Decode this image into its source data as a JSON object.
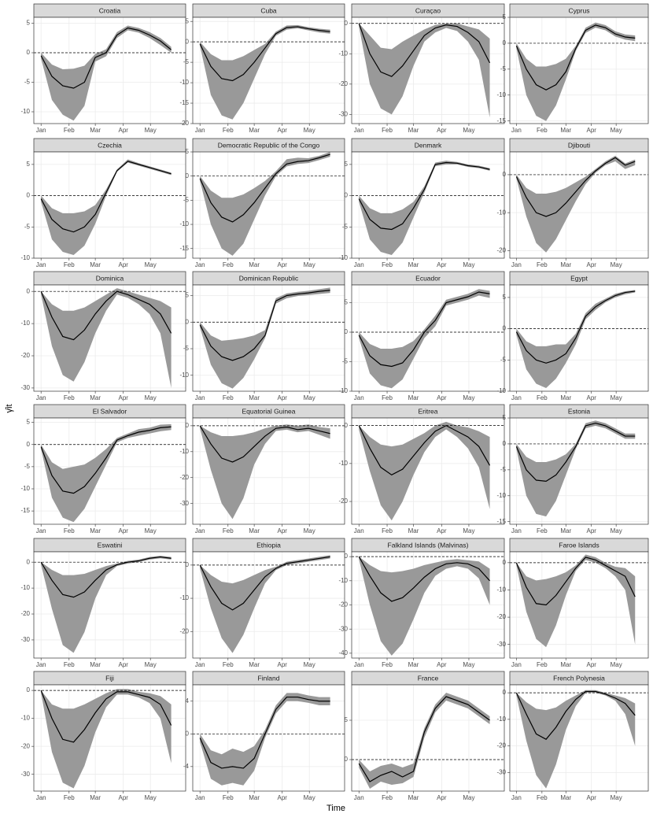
{
  "x_axis": {
    "label": "Time",
    "x": [
      0,
      12,
      24,
      36,
      48,
      60,
      72,
      84,
      96,
      108,
      120,
      132,
      144
    ],
    "xlim": [
      -8,
      160
    ],
    "xticks": [
      {
        "value": 0,
        "label": "Jan"
      },
      {
        "value": 31,
        "label": "Feb"
      },
      {
        "value": 60,
        "label": "Mar"
      },
      {
        "value": 91,
        "label": "Apr"
      },
      {
        "value": 121,
        "label": "May"
      }
    ]
  },
  "y_axis": {
    "label": "γ̂it"
  },
  "chart_data": [
    {
      "type": "line",
      "title": "Croatia",
      "ylim": [
        -12,
        6
      ],
      "yticks": [
        -10,
        -5,
        0,
        5
      ],
      "hline": 0,
      "values": [
        -0.5,
        -4,
        -5.6,
        -6,
        -5,
        -0.8,
        0,
        3,
        4.2,
        3.8,
        3,
        2,
        0.5
      ],
      "lower": [
        -1,
        -8,
        -10.5,
        -11.5,
        -9,
        -1.5,
        -0.6,
        2.5,
        3.8,
        3.4,
        2.5,
        1.3,
        0
      ],
      "upper": [
        0,
        -2,
        -2.8,
        -2.7,
        -2.2,
        -0.2,
        0.6,
        3.5,
        4.6,
        4.2,
        3.5,
        2.5,
        1
      ]
    },
    {
      "type": "line",
      "title": "Cuba",
      "ylim": [
        -20,
        6
      ],
      "yticks": [
        -20,
        -15,
        -10,
        -5,
        0,
        5
      ],
      "hline": 0,
      "values": [
        -0.5,
        -6,
        -9,
        -9.5,
        -8,
        -5,
        -1.5,
        2,
        3.5,
        3.7,
        3.2,
        2.8,
        2.5
      ],
      "lower": [
        -1,
        -13,
        -18,
        -19,
        -15,
        -9,
        -3,
        1.5,
        3,
        3.3,
        2.8,
        2.3,
        2
      ],
      "upper": [
        0,
        -3,
        -4.5,
        -4.5,
        -3.5,
        -2,
        -0.5,
        2.5,
        4,
        4.1,
        3.6,
        3.2,
        3
      ]
    },
    {
      "type": "line",
      "title": "Curaçao",
      "ylim": [
        -33,
        2
      ],
      "yticks": [
        -30,
        -20,
        -10,
        0
      ],
      "hline": 0,
      "values": [
        0,
        -10,
        -16,
        -17.5,
        -14,
        -9,
        -4,
        -1.5,
        -0.5,
        -1,
        -3,
        -6,
        -13
      ],
      "lower": [
        -1,
        -20,
        -28,
        -30,
        -24,
        -14,
        -6,
        -3,
        -1.5,
        -2.5,
        -6,
        -12,
        -31
      ],
      "upper": [
        0,
        -4,
        -8,
        -8.5,
        -6,
        -4,
        -2,
        -0.5,
        0,
        0,
        -1,
        -2,
        -5
      ]
    },
    {
      "type": "line",
      "title": "Cyprus",
      "ylim": [
        -15.5,
        5
      ],
      "yticks": [
        -15,
        -10,
        -5,
        0,
        5
      ],
      "hline": 0,
      "values": [
        -0.5,
        -5,
        -8,
        -9,
        -8,
        -5.5,
        -1,
        2.5,
        3.5,
        3,
        1.8,
        1.2,
        1
      ],
      "lower": [
        -1,
        -10,
        -14,
        -15,
        -12,
        -7,
        -1.5,
        2,
        3,
        2.5,
        1.3,
        0.7,
        0.4
      ],
      "upper": [
        0,
        -3,
        -4.5,
        -4.5,
        -4,
        -3,
        -0.5,
        3,
        4,
        3.5,
        2.3,
        1.7,
        1.5
      ]
    },
    {
      "type": "line",
      "title": "Czechia",
      "ylim": [
        -10,
        7
      ],
      "yticks": [
        -10,
        -5,
        0,
        5
      ],
      "hline": 0,
      "values": [
        -0.5,
        -3.8,
        -5.3,
        -5.8,
        -5,
        -3,
        0.5,
        4,
        5.5,
        5,
        4.5,
        4,
        3.5
      ],
      "lower": [
        -1,
        -7,
        -9,
        -9.5,
        -8,
        -4.5,
        0,
        3.8,
        5.3,
        4.8,
        4.3,
        3.8,
        3.3
      ],
      "upper": [
        0,
        -2,
        -2.8,
        -2.8,
        -2.5,
        -1.5,
        1,
        4.2,
        5.8,
        5.2,
        4.7,
        4.2,
        3.7
      ]
    },
    {
      "type": "line",
      "title": "Democratic Republic of the Congo",
      "ylim": [
        -17,
        5
      ],
      "yticks": [
        -15,
        -10,
        -5,
        0,
        5
      ],
      "hline": 0,
      "values": [
        -0.5,
        -5.5,
        -8.5,
        -9.5,
        -8,
        -5.5,
        -2.5,
        0.5,
        2.5,
        3,
        3.2,
        3.8,
        4.5
      ],
      "lower": [
        -1,
        -10,
        -15,
        -16.5,
        -14,
        -9,
        -4,
        0,
        2,
        2.5,
        2.7,
        3.3,
        4
      ],
      "upper": [
        0,
        -3,
        -4.5,
        -4.5,
        -3.8,
        -2.5,
        -1,
        1,
        3.5,
        3.8,
        3.7,
        4.2,
        5
      ]
    },
    {
      "type": "line",
      "title": "Denmark",
      "ylim": [
        -10,
        7
      ],
      "yticks": [
        -10,
        -5,
        0,
        5
      ],
      "hline": 0,
      "values": [
        -0.5,
        -3.8,
        -5.2,
        -5.4,
        -4.5,
        -2,
        1,
        5,
        5.3,
        5.2,
        4.8,
        4.6,
        4.2
      ],
      "lower": [
        -1,
        -7,
        -9,
        -9.5,
        -7.5,
        -3.5,
        0.5,
        4.7,
        5,
        5,
        4.6,
        4.4,
        4
      ],
      "upper": [
        0,
        -2,
        -2.8,
        -2.8,
        -2.2,
        -1,
        1.5,
        5.3,
        5.6,
        5.4,
        5,
        4.8,
        4.4
      ]
    },
    {
      "type": "line",
      "title": "Djibouti",
      "ylim": [
        -22,
        6
      ],
      "yticks": [
        -20,
        -10,
        0
      ],
      "hline": 0,
      "values": [
        -0.5,
        -6,
        -10,
        -11,
        -10,
        -7.5,
        -4.5,
        -1.5,
        1,
        3,
        4.5,
        2.5,
        3.5
      ],
      "lower": [
        -1,
        -11,
        -18,
        -20.5,
        -17,
        -12,
        -7,
        -2.5,
        0.5,
        2.5,
        3.5,
        1.5,
        2.5
      ],
      "upper": [
        0,
        -3.5,
        -5,
        -5,
        -4.5,
        -3.5,
        -2,
        -0.5,
        1.5,
        3.5,
        5,
        3,
        4
      ]
    },
    {
      "type": "line",
      "title": "Dominica",
      "ylim": [
        -31,
        2
      ],
      "yticks": [
        -30,
        -20,
        -10,
        0
      ],
      "hline": 0,
      "values": [
        0,
        -8,
        -14,
        -15,
        -12,
        -7,
        -3,
        0,
        -1,
        -2.5,
        -4,
        -7,
        -13
      ],
      "lower": [
        -1,
        -17,
        -26,
        -28,
        -22,
        -13,
        -6,
        -1,
        -2,
        -4,
        -7,
        -13,
        -30
      ],
      "upper": [
        0,
        -4,
        -6,
        -6,
        -5,
        -3,
        -1,
        1,
        0,
        -1,
        -2,
        -3,
        -5
      ]
    },
    {
      "type": "line",
      "title": "Dominican Republic",
      "ylim": [
        -13,
        7
      ],
      "yticks": [
        -10,
        -5,
        0,
        5
      ],
      "hline": 0,
      "values": [
        -0.5,
        -4.5,
        -6.5,
        -7.2,
        -6.5,
        -5,
        -2.5,
        4,
        5,
        5.3,
        5.5,
        5.8,
        6
      ],
      "lower": [
        -1,
        -8,
        -11.5,
        -12.5,
        -10.5,
        -7,
        -3,
        3.5,
        4.5,
        4.9,
        5.1,
        5.3,
        5.5
      ],
      "upper": [
        0,
        -2.5,
        -3.5,
        -3.3,
        -3,
        -2.5,
        -1.5,
        4.5,
        5.4,
        5.7,
        5.9,
        6.2,
        6.5
      ]
    },
    {
      "type": "line",
      "title": "Ecuador",
      "ylim": [
        -10,
        8
      ],
      "yticks": [
        -10,
        -5,
        0,
        5
      ],
      "hline": 0,
      "values": [
        -0.5,
        -4,
        -5.5,
        -5.8,
        -5.2,
        -3,
        0,
        2,
        5,
        5.5,
        6,
        6.8,
        6.5
      ],
      "lower": [
        -1,
        -7,
        -9,
        -9.5,
        -8,
        -4.5,
        -1,
        1,
        4.5,
        5,
        5.5,
        6.2,
        5.8
      ],
      "upper": [
        0,
        -2,
        -2.8,
        -2.8,
        -2.5,
        -1.5,
        0.5,
        2.8,
        5.5,
        6,
        6.5,
        7.3,
        7
      ]
    },
    {
      "type": "line",
      "title": "Egypt",
      "ylim": [
        -10,
        7
      ],
      "yticks": [
        -10,
        -5,
        0,
        5
      ],
      "hline": 0,
      "values": [
        -0.5,
        -3.5,
        -5,
        -5.5,
        -5,
        -4,
        -1.5,
        2,
        3.5,
        4.5,
        5.3,
        5.8,
        6
      ],
      "lower": [
        -1,
        -6.5,
        -8.8,
        -9.5,
        -8,
        -5.5,
        -2.5,
        1.5,
        3,
        4.2,
        5,
        5.5,
        5.8
      ],
      "upper": [
        0,
        -2,
        -2.8,
        -2.8,
        -2.5,
        -2.5,
        -0.8,
        2.5,
        4,
        4.8,
        5.6,
        6,
        6.2
      ]
    },
    {
      "type": "line",
      "title": "El Salvador",
      "ylim": [
        -18,
        6
      ],
      "yticks": [
        -15,
        -10,
        -5,
        0,
        5
      ],
      "hline": 0,
      "values": [
        -0.5,
        -7,
        -10.5,
        -11,
        -9.5,
        -6.5,
        -3,
        1,
        2,
        2.8,
        3.2,
        3.8,
        4
      ],
      "lower": [
        -1,
        -12,
        -16.5,
        -17.5,
        -14.5,
        -9.5,
        -4.5,
        0.5,
        1.5,
        2,
        2.5,
        3,
        3.3
      ],
      "upper": [
        0,
        -4,
        -5.5,
        -5,
        -4.5,
        -3,
        -1,
        1.5,
        2.5,
        3.5,
        3.8,
        4.5,
        4.6
      ]
    },
    {
      "type": "line",
      "title": "Equatorial Guinea",
      "ylim": [
        -38,
        3
      ],
      "yticks": [
        -30,
        -20,
        -10,
        0
      ],
      "hline": 0,
      "values": [
        0,
        -7,
        -12.5,
        -14,
        -12,
        -8,
        -4,
        -1,
        -0.5,
        -1.5,
        -1,
        -2,
        -3
      ],
      "lower": [
        -1,
        -17,
        -30,
        -36,
        -28,
        -15,
        -7,
        -2,
        -1.5,
        -2.5,
        -2,
        -3.5,
        -5
      ],
      "upper": [
        0,
        -2.5,
        -4,
        -4,
        -3.5,
        -2.5,
        -1,
        0,
        0.5,
        0,
        0.5,
        -0.5,
        -1
      ]
    },
    {
      "type": "line",
      "title": "Eritrea",
      "ylim": [
        -26,
        2
      ],
      "yticks": [
        -20,
        -10,
        0
      ],
      "hline": 0,
      "values": [
        0,
        -6,
        -11,
        -13,
        -11.5,
        -8,
        -4.5,
        -1.5,
        0,
        -1.5,
        -3,
        -5.5,
        -10.5
      ],
      "lower": [
        -1,
        -12,
        -21,
        -25,
        -20,
        -13,
        -7,
        -3,
        -1,
        -3,
        -6,
        -11,
        -22
      ],
      "upper": [
        0,
        -3,
        -5,
        -5.5,
        -5,
        -3.5,
        -2,
        0,
        1,
        0,
        -0.5,
        -1.5,
        -3
      ]
    },
    {
      "type": "line",
      "title": "Estonia",
      "ylim": [
        -15.5,
        5
      ],
      "yticks": [
        -15,
        -10,
        -5,
        0,
        5
      ],
      "hline": 0,
      "values": [
        -0.5,
        -5,
        -7,
        -7.2,
        -6,
        -3.5,
        -0.5,
        3.5,
        4,
        3.5,
        2.5,
        1.5,
        1.5
      ],
      "lower": [
        -1,
        -10,
        -13.5,
        -14,
        -11,
        -6,
        -1,
        3,
        3.5,
        3,
        2,
        1,
        1
      ],
      "upper": [
        0,
        -2.5,
        -3.5,
        -3.5,
        -3,
        -2,
        0,
        4,
        4.5,
        4,
        3,
        2,
        2
      ]
    },
    {
      "type": "line",
      "title": "Eswatini",
      "ylim": [
        -37,
        4
      ],
      "yticks": [
        -30,
        -20,
        -10,
        0
      ],
      "hline": 0,
      "values": [
        0,
        -7,
        -12.5,
        -13.5,
        -11.5,
        -7,
        -3,
        -1,
        0,
        0.5,
        1.5,
        2,
        1.5
      ],
      "lower": [
        -1,
        -18,
        -32,
        -35,
        -27,
        -14,
        -5,
        -1.5,
        -0.5,
        0,
        1,
        1.5,
        1
      ],
      "upper": [
        0,
        -3,
        -5,
        -5,
        -4.5,
        -3,
        -1.5,
        -0.5,
        0.5,
        1,
        2,
        2.5,
        2
      ]
    },
    {
      "type": "line",
      "title": "Ethiopia",
      "ylim": [
        -28,
        4
      ],
      "yticks": [
        -20,
        -10,
        0
      ],
      "hline": 0,
      "values": [
        0,
        -6.5,
        -11.5,
        -13.5,
        -11.5,
        -7.5,
        -3.5,
        -1,
        0.5,
        1,
        1.5,
        2,
        2.5
      ],
      "lower": [
        -1,
        -13,
        -22,
        -26.5,
        -21,
        -13,
        -5.5,
        -1.5,
        0,
        0.5,
        1,
        1.5,
        2
      ],
      "upper": [
        0,
        -3,
        -5,
        -5.5,
        -4.5,
        -3,
        -1.5,
        -0.5,
        1,
        1.5,
        2,
        2.5,
        3
      ]
    },
    {
      "type": "line",
      "title": "Falkland Islands (Malvinas)",
      "ylim": [
        -42,
        2
      ],
      "yticks": [
        -40,
        -30,
        -20,
        -10,
        0
      ],
      "hline": 0,
      "values": [
        0,
        -8,
        -15,
        -18.5,
        -17,
        -13,
        -8.5,
        -5,
        -3,
        -2.5,
        -3,
        -5,
        -10
      ],
      "lower": [
        -1,
        -20,
        -35,
        -41,
        -36,
        -26,
        -15,
        -8,
        -5,
        -4,
        -5,
        -9,
        -20
      ],
      "upper": [
        0,
        -3.5,
        -6,
        -6.5,
        -6,
        -5,
        -3.5,
        -2.5,
        -1.5,
        -1,
        -1.5,
        -2,
        -5
      ]
    },
    {
      "type": "line",
      "title": "Faroe Islands",
      "ylim": [
        -35,
        4
      ],
      "yticks": [
        -30,
        -20,
        -10,
        0
      ],
      "hline": 0,
      "values": [
        0,
        -9,
        -15,
        -15.5,
        -12,
        -7,
        -2,
        2,
        1,
        -1,
        -3,
        -5,
        -12.5
      ],
      "lower": [
        -1,
        -18,
        -28,
        -31,
        -23,
        -12,
        -3,
        1,
        0,
        -2,
        -5,
        -10,
        -30
      ],
      "upper": [
        0,
        -5,
        -6.5,
        -6,
        -5,
        -3.5,
        -1,
        3,
        2,
        0,
        -1.5,
        -2,
        -5
      ]
    },
    {
      "type": "line",
      "title": "Fiji",
      "ylim": [
        -36,
        2
      ],
      "yticks": [
        -30,
        -20,
        -10,
        0
      ],
      "hline": 0,
      "values": [
        0,
        -10,
        -17.5,
        -18.5,
        -14,
        -8,
        -3,
        -0.5,
        -0.5,
        -1.5,
        -2.5,
        -5,
        -12.5
      ],
      "lower": [
        -1,
        -22,
        -33,
        -35,
        -27,
        -15,
        -6,
        -1.5,
        -1.5,
        -2.5,
        -4.5,
        -10,
        -26
      ],
      "upper": [
        0,
        -5,
        -6.5,
        -6.5,
        -5,
        -3,
        -1,
        0.5,
        0.5,
        -0.5,
        -1,
        -2,
        -5
      ]
    },
    {
      "type": "line",
      "title": "Finland",
      "ylim": [
        -7,
        6
      ],
      "yticks": [
        -4,
        0,
        4
      ],
      "hline": 0,
      "values": [
        -0.5,
        -3.5,
        -4.2,
        -4,
        -4.2,
        -3,
        0,
        3,
        4.5,
        4.5,
        4.2,
        4,
        4
      ],
      "lower": [
        -1,
        -5.5,
        -6.3,
        -6,
        -6.3,
        -4.5,
        -0.5,
        2.5,
        4,
        4,
        3.8,
        3.5,
        3.5
      ],
      "upper": [
        0,
        -2,
        -2.5,
        -1.8,
        -2.2,
        -1.5,
        0.5,
        3.5,
        5,
        5,
        4.7,
        4.5,
        4.5
      ]
    },
    {
      "type": "line",
      "title": "France",
      "ylim": [
        -4,
        9.5
      ],
      "yticks": [
        0,
        5
      ],
      "hline": 0,
      "values": [
        -0.5,
        -2.8,
        -2,
        -1.5,
        -2.2,
        -1.5,
        3.5,
        6.5,
        8,
        7.5,
        7,
        6,
        5
      ],
      "lower": [
        -1,
        -3.7,
        -2.8,
        -3.2,
        -3,
        -2.2,
        2.8,
        6,
        7.5,
        7,
        6.5,
        5.5,
        4.5
      ],
      "upper": [
        0,
        -1.5,
        -0.8,
        -0.5,
        -1,
        -0.5,
        4,
        7,
        8.5,
        8,
        7.5,
        6.5,
        5.5
      ]
    },
    {
      "type": "line",
      "title": "French Polynesia",
      "ylim": [
        -37,
        3
      ],
      "yticks": [
        -30,
        -20,
        -10,
        0
      ],
      "hline": 0,
      "values": [
        0,
        -8,
        -15.5,
        -17.5,
        -13,
        -7,
        -2.5,
        0.5,
        0.5,
        -0.5,
        -2,
        -4,
        -8.5
      ],
      "lower": [
        -1,
        -18,
        -31,
        -36,
        -27,
        -14,
        -5,
        0,
        0,
        -1,
        -3,
        -8,
        -20
      ],
      "upper": [
        0,
        -3.5,
        -6,
        -6.5,
        -5.5,
        -3,
        -1,
        1,
        1,
        0,
        -1,
        -2,
        -4
      ]
    }
  ]
}
